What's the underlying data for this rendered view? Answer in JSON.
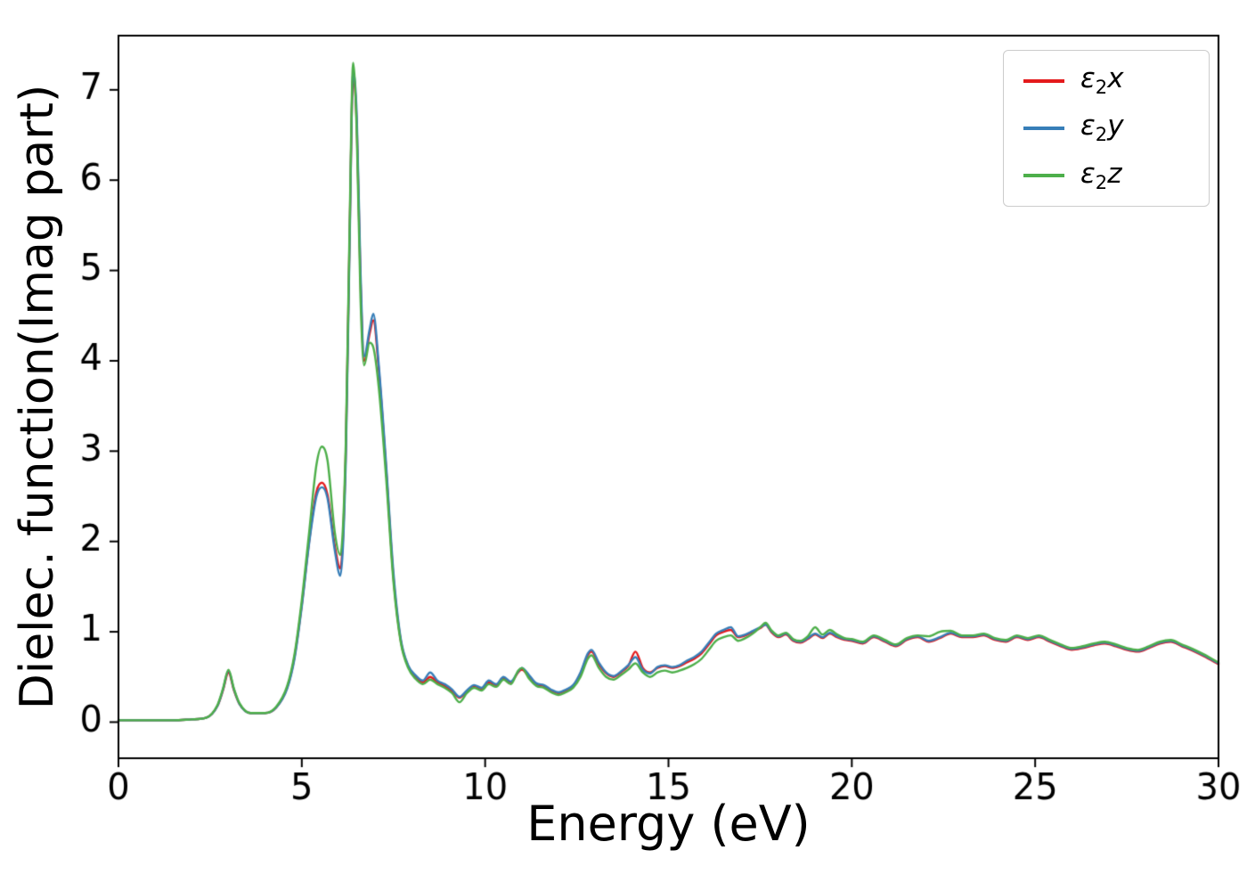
{
  "chart_data": {
    "type": "line",
    "title": "",
    "xlabel": "Energy (eV)",
    "ylabel": "Dielec. function(Imag part)",
    "xlim": [
      0,
      30
    ],
    "ylim": [
      -0.4,
      7.6
    ],
    "xticks": [
      0,
      5,
      10,
      15,
      20,
      25,
      30
    ],
    "yticks": [
      0,
      1,
      2,
      3,
      4,
      5,
      6,
      7
    ],
    "grid": false,
    "legend_position": "upper right",
    "colors": {
      "background": "#ffffff",
      "spine": "#000000"
    },
    "x": [
      0,
      0.5,
      1.0,
      1.5,
      2.0,
      2.4,
      2.7,
      2.85,
      3.0,
      3.15,
      3.3,
      3.6,
      4.0,
      4.3,
      4.6,
      4.8,
      5.0,
      5.2,
      5.4,
      5.55,
      5.7,
      5.9,
      6.05,
      6.2,
      6.3,
      6.4,
      6.5,
      6.6,
      6.7,
      6.85,
      6.95,
      7.1,
      7.3,
      7.5,
      7.7,
      7.9,
      8.1,
      8.3,
      8.5,
      8.7,
      8.9,
      9.1,
      9.3,
      9.5,
      9.7,
      9.9,
      10.1,
      10.3,
      10.5,
      10.7,
      10.9,
      11.0,
      11.2,
      11.4,
      11.6,
      11.8,
      12.0,
      12.2,
      12.4,
      12.6,
      12.8,
      12.9,
      13.1,
      13.3,
      13.5,
      13.7,
      13.9,
      14.1,
      14.3,
      14.5,
      14.7,
      14.9,
      15.1,
      15.3,
      15.5,
      15.7,
      15.9,
      16.1,
      16.3,
      16.5,
      16.7,
      16.9,
      17.1,
      17.3,
      17.5,
      17.65,
      17.8,
      18.0,
      18.2,
      18.4,
      18.6,
      18.8,
      19.0,
      19.2,
      19.4,
      19.6,
      19.8,
      20.0,
      20.3,
      20.6,
      20.9,
      21.2,
      21.5,
      21.8,
      22.1,
      22.4,
      22.7,
      23.0,
      23.3,
      23.6,
      23.9,
      24.2,
      24.5,
      24.8,
      25.1,
      25.4,
      25.7,
      26.0,
      26.3,
      26.6,
      26.9,
      27.2,
      27.5,
      27.8,
      28.1,
      28.4,
      28.7,
      29.0,
      29.3,
      29.6,
      30.0
    ],
    "series": [
      {
        "name": "eps2x",
        "label": {
          "sym": "ε",
          "sub": "2",
          "axis": "x"
        },
        "color": "#e41a1c",
        "values": [
          0.02,
          0.02,
          0.02,
          0.02,
          0.03,
          0.05,
          0.18,
          0.35,
          0.55,
          0.35,
          0.2,
          0.1,
          0.1,
          0.16,
          0.38,
          0.72,
          1.3,
          2.0,
          2.55,
          2.65,
          2.52,
          1.95,
          1.7,
          3.0,
          5.3,
          7.15,
          6.6,
          4.9,
          4.0,
          4.3,
          4.45,
          3.9,
          2.8,
          1.6,
          0.9,
          0.62,
          0.5,
          0.44,
          0.5,
          0.44,
          0.4,
          0.34,
          0.27,
          0.34,
          0.4,
          0.37,
          0.44,
          0.41,
          0.49,
          0.44,
          0.55,
          0.58,
          0.5,
          0.42,
          0.4,
          0.35,
          0.32,
          0.35,
          0.4,
          0.54,
          0.74,
          0.78,
          0.64,
          0.54,
          0.5,
          0.55,
          0.62,
          0.78,
          0.6,
          0.55,
          0.6,
          0.62,
          0.6,
          0.62,
          0.66,
          0.7,
          0.76,
          0.86,
          0.96,
          1.0,
          1.02,
          0.94,
          0.96,
          1.0,
          1.04,
          1.08,
          1.0,
          0.94,
          0.97,
          0.9,
          0.88,
          0.92,
          0.97,
          0.93,
          0.98,
          0.94,
          0.91,
          0.9,
          0.87,
          0.94,
          0.89,
          0.84,
          0.91,
          0.94,
          0.89,
          0.93,
          0.98,
          0.94,
          0.94,
          0.96,
          0.91,
          0.89,
          0.94,
          0.91,
          0.94,
          0.89,
          0.84,
          0.8,
          0.82,
          0.85,
          0.87,
          0.84,
          0.8,
          0.78,
          0.82,
          0.87,
          0.89,
          0.84,
          0.79,
          0.73,
          0.64
        ]
      },
      {
        "name": "eps2y",
        "label": {
          "sym": "ε",
          "sub": "2",
          "axis": "y"
        },
        "color": "#377eb8",
        "values": [
          0.02,
          0.02,
          0.02,
          0.02,
          0.03,
          0.05,
          0.18,
          0.36,
          0.57,
          0.36,
          0.2,
          0.1,
          0.1,
          0.16,
          0.37,
          0.7,
          1.28,
          1.98,
          2.5,
          2.6,
          2.48,
          1.9,
          1.62,
          2.9,
          5.2,
          7.2,
          6.7,
          5.0,
          4.05,
          4.35,
          4.52,
          3.95,
          2.85,
          1.65,
          0.92,
          0.63,
          0.52,
          0.46,
          0.55,
          0.46,
          0.42,
          0.36,
          0.28,
          0.35,
          0.41,
          0.38,
          0.46,
          0.42,
          0.5,
          0.45,
          0.56,
          0.6,
          0.52,
          0.43,
          0.41,
          0.36,
          0.33,
          0.36,
          0.41,
          0.55,
          0.76,
          0.8,
          0.66,
          0.55,
          0.51,
          0.56,
          0.63,
          0.72,
          0.58,
          0.54,
          0.61,
          0.63,
          0.61,
          0.63,
          0.68,
          0.72,
          0.78,
          0.88,
          0.98,
          1.02,
          1.05,
          0.95,
          0.97,
          1.01,
          1.05,
          1.08,
          1.01,
          0.95,
          0.98,
          0.91,
          0.89,
          0.93,
          0.98,
          0.94,
          0.99,
          0.95,
          0.92,
          0.91,
          0.88,
          0.95,
          0.9,
          0.85,
          0.92,
          0.95,
          0.9,
          0.94,
          0.99,
          0.95,
          0.95,
          0.97,
          0.92,
          0.9,
          0.95,
          0.92,
          0.95,
          0.9,
          0.85,
          0.81,
          0.83,
          0.86,
          0.88,
          0.85,
          0.81,
          0.79,
          0.83,
          0.88,
          0.9,
          0.85,
          0.8,
          0.74,
          0.65
        ]
      },
      {
        "name": "eps2z",
        "label": {
          "sym": "ε",
          "sub": "2",
          "axis": "z"
        },
        "color": "#4daf4a",
        "values": [
          0.02,
          0.02,
          0.02,
          0.02,
          0.03,
          0.05,
          0.19,
          0.37,
          0.58,
          0.37,
          0.21,
          0.1,
          0.1,
          0.17,
          0.4,
          0.75,
          1.35,
          2.1,
          2.85,
          3.05,
          2.9,
          2.1,
          1.85,
          3.1,
          5.4,
          7.3,
          6.5,
          4.7,
          3.95,
          4.2,
          4.15,
          3.7,
          2.7,
          1.55,
          0.88,
          0.6,
          0.48,
          0.42,
          0.47,
          0.42,
          0.38,
          0.32,
          0.22,
          0.32,
          0.38,
          0.35,
          0.42,
          0.39,
          0.47,
          0.42,
          0.57,
          0.6,
          0.48,
          0.4,
          0.38,
          0.33,
          0.3,
          0.33,
          0.38,
          0.5,
          0.7,
          0.74,
          0.6,
          0.5,
          0.47,
          0.52,
          0.58,
          0.65,
          0.55,
          0.5,
          0.55,
          0.57,
          0.55,
          0.57,
          0.6,
          0.64,
          0.7,
          0.8,
          0.9,
          0.94,
          0.96,
          0.9,
          0.93,
          0.98,
          1.05,
          1.1,
          1.02,
          0.96,
          0.99,
          0.92,
          0.9,
          0.95,
          1.05,
          0.97,
          1.02,
          0.97,
          0.93,
          0.92,
          0.89,
          0.96,
          0.91,
          0.86,
          0.93,
          0.96,
          0.95,
          1.0,
          1.01,
          0.96,
          0.96,
          0.98,
          0.93,
          0.91,
          0.96,
          0.93,
          0.96,
          0.91,
          0.86,
          0.82,
          0.84,
          0.87,
          0.89,
          0.86,
          0.82,
          0.8,
          0.84,
          0.89,
          0.91,
          0.86,
          0.81,
          0.75,
          0.66
        ]
      }
    ]
  }
}
